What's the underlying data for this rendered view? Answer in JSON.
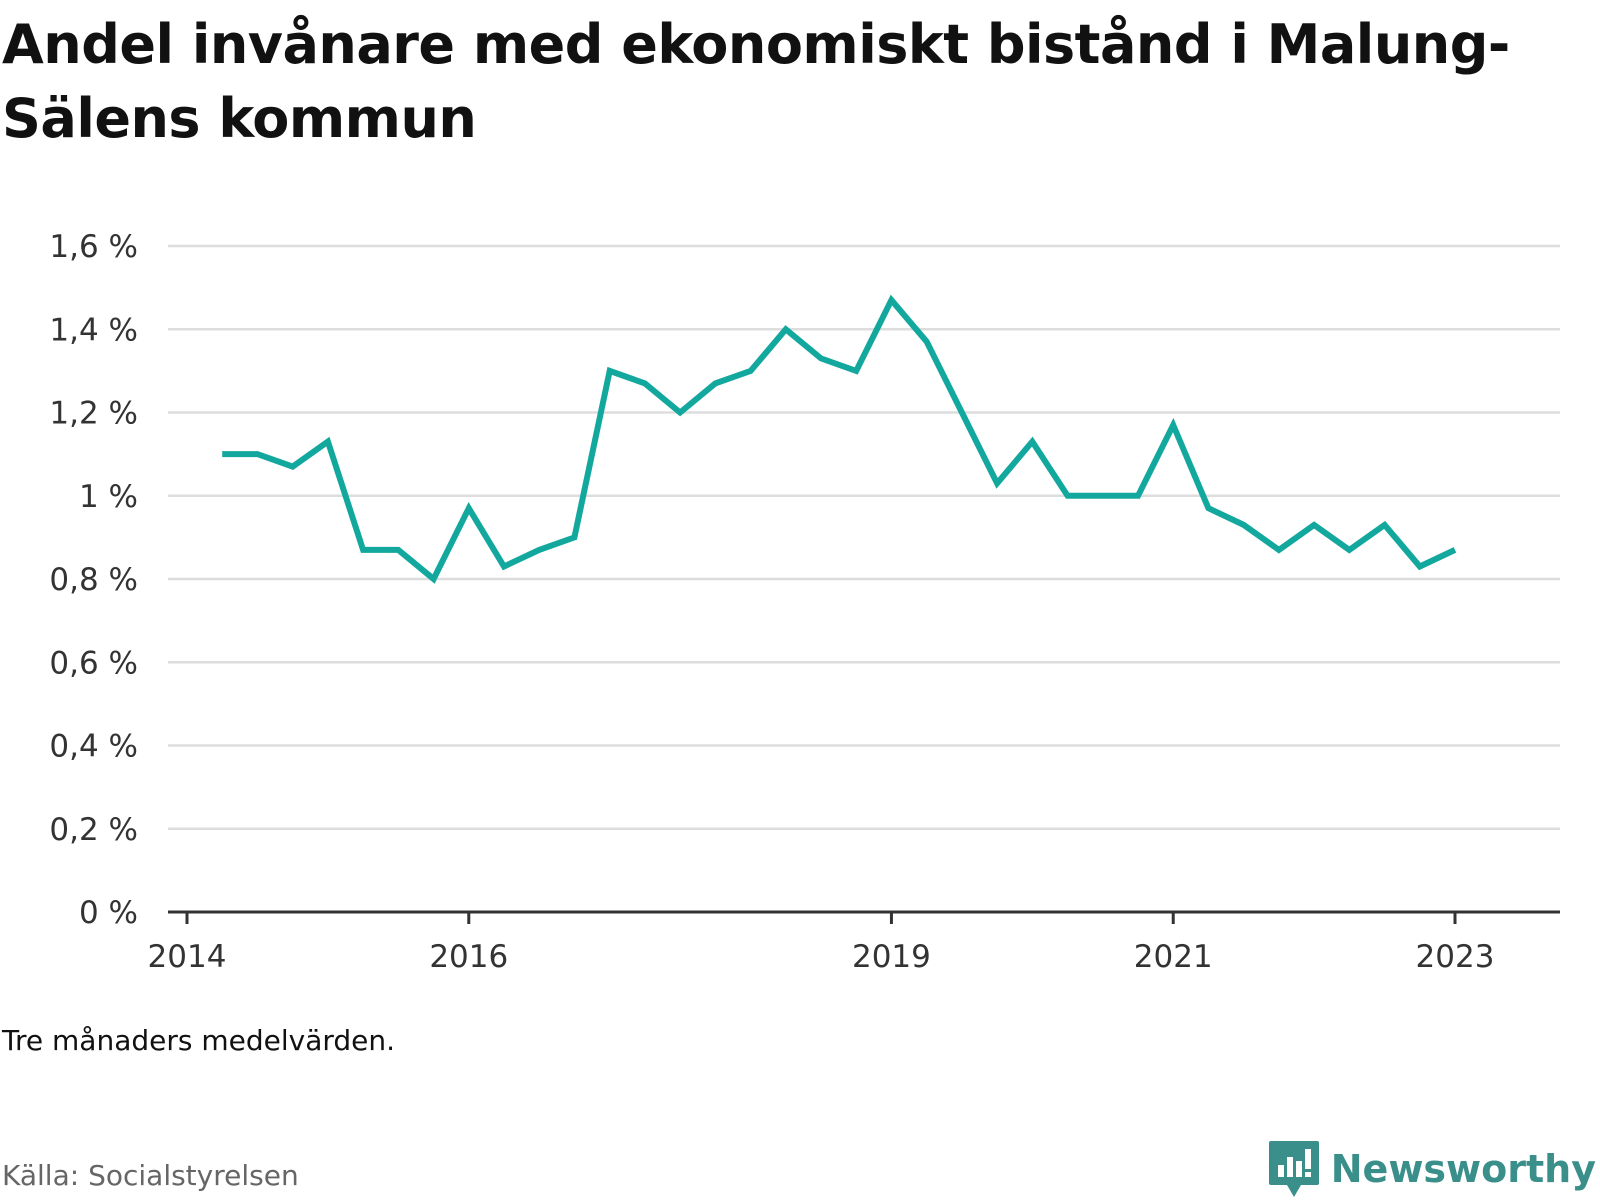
{
  "title": "Andel invånare med ekonomiskt bistånd i Malung-Sälens kommun",
  "note": "Tre månaders medelvärden.",
  "source": "Källa: Socialstyrelsen",
  "brand": {
    "name": "Newsworthy",
    "icon": "newsworthy-logo-icon",
    "color": "#3a8f8a"
  },
  "colors": {
    "line": "#13a89e",
    "grid": "#dddddd",
    "axis": "#333333",
    "text": "#333333"
  },
  "chart_data": {
    "type": "line",
    "title": "Andel invånare med ekonomiskt bistånd i Malung-Sälens kommun",
    "xlabel": "",
    "ylabel": "",
    "grid": true,
    "ylim": [
      0,
      1.6
    ],
    "yticks": [
      0,
      0.2,
      0.4,
      0.6,
      0.8,
      1.0,
      1.2,
      1.4,
      1.6
    ],
    "ytick_labels": [
      "0 %",
      "0,2 %",
      "0,4 %",
      "0,6 %",
      "0,8 %",
      "1 %",
      "1,2 %",
      "1,4 %",
      "1,6 %"
    ],
    "xlim": [
      2014.0,
      2023.5
    ],
    "xticks": [
      2014,
      2016,
      2019,
      2021,
      2023
    ],
    "xtick_labels": [
      "2014",
      "2016",
      "2019",
      "2021",
      "2023"
    ],
    "series": [
      {
        "x": [
          2014.25,
          2014.5,
          2014.75,
          2015.0,
          2015.25,
          2015.5,
          2015.75,
          2016.0,
          2016.25,
          2016.5,
          2016.75,
          2017.0,
          2017.25,
          2017.5,
          2017.75,
          2018.0,
          2018.25,
          2018.5,
          2018.75,
          2019.0,
          2019.25,
          2019.5,
          2019.75,
          2020.0,
          2020.25,
          2020.5,
          2020.75,
          2021.0,
          2021.25,
          2021.5,
          2021.75,
          2022.0,
          2022.25,
          2022.5,
          2022.75,
          2023.0
        ],
        "values": [
          1.1,
          1.1,
          1.07,
          1.13,
          0.87,
          0.87,
          0.8,
          0.97,
          0.83,
          0.87,
          0.9,
          1.3,
          1.27,
          1.2,
          1.27,
          1.3,
          1.4,
          1.33,
          1.3,
          1.47,
          1.37,
          1.2,
          1.03,
          1.13,
          1.0,
          1.0,
          1.0,
          1.17,
          0.97,
          0.93,
          0.87,
          0.93,
          0.87,
          0.93,
          0.83,
          0.87
        ]
      }
    ]
  }
}
